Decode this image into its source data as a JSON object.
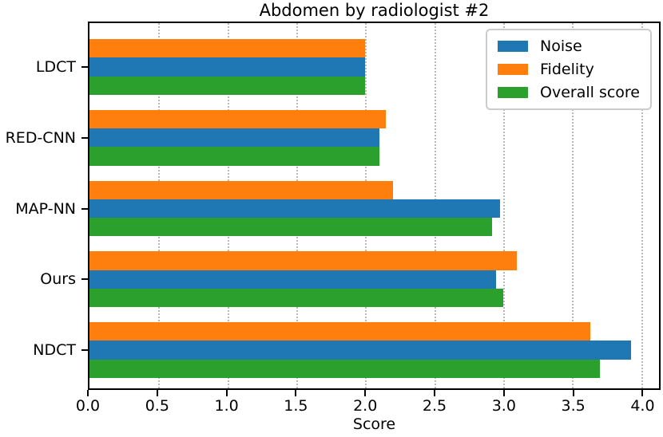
{
  "title": "Abdomen by radiologist #2",
  "chart_data": {
    "type": "bar",
    "orientation": "horizontal",
    "title": "Abdomen by radiologist #2",
    "xlabel": "Score",
    "categories": [
      "LDCT",
      "RED-CNN",
      "MAP-NN",
      "Ours",
      "NDCT"
    ],
    "series": [
      {
        "name": "Noise",
        "color": "#1f77b4",
        "values": [
          2.0,
          2.1,
          2.98,
          2.95,
          3.93
        ]
      },
      {
        "name": "Fidelity",
        "color": "#ff7f0e",
        "values": [
          2.0,
          2.15,
          2.2,
          3.1,
          3.63
        ]
      },
      {
        "name": "Overall score",
        "color": "#2ca02c",
        "values": [
          2.0,
          2.1,
          2.92,
          3.0,
          3.7
        ]
      }
    ],
    "bar_display_order_top_to_bottom": [
      1,
      0,
      2
    ],
    "x_ticks": [
      "0.0",
      "0.5",
      "1.0",
      "1.5",
      "2.0",
      "2.5",
      "3.0",
      "3.5",
      "4.0"
    ],
    "x_tick_values": [
      0,
      0.5,
      1,
      1.5,
      2,
      2.5,
      3,
      3.5,
      4
    ],
    "xlim": [
      0,
      4.13
    ],
    "grid": "vertical dotted at every 0.5",
    "legend_position": "upper-right",
    "legend_entries": [
      "Noise",
      "Fidelity",
      "Overall score"
    ],
    "category_axis_inverted": "LDCT at top, NDCT at bottom"
  },
  "colors": {
    "spine": "#000000",
    "grid": "#b8b8b8",
    "legend_border": "#cccccc",
    "background": "#ffffff"
  }
}
